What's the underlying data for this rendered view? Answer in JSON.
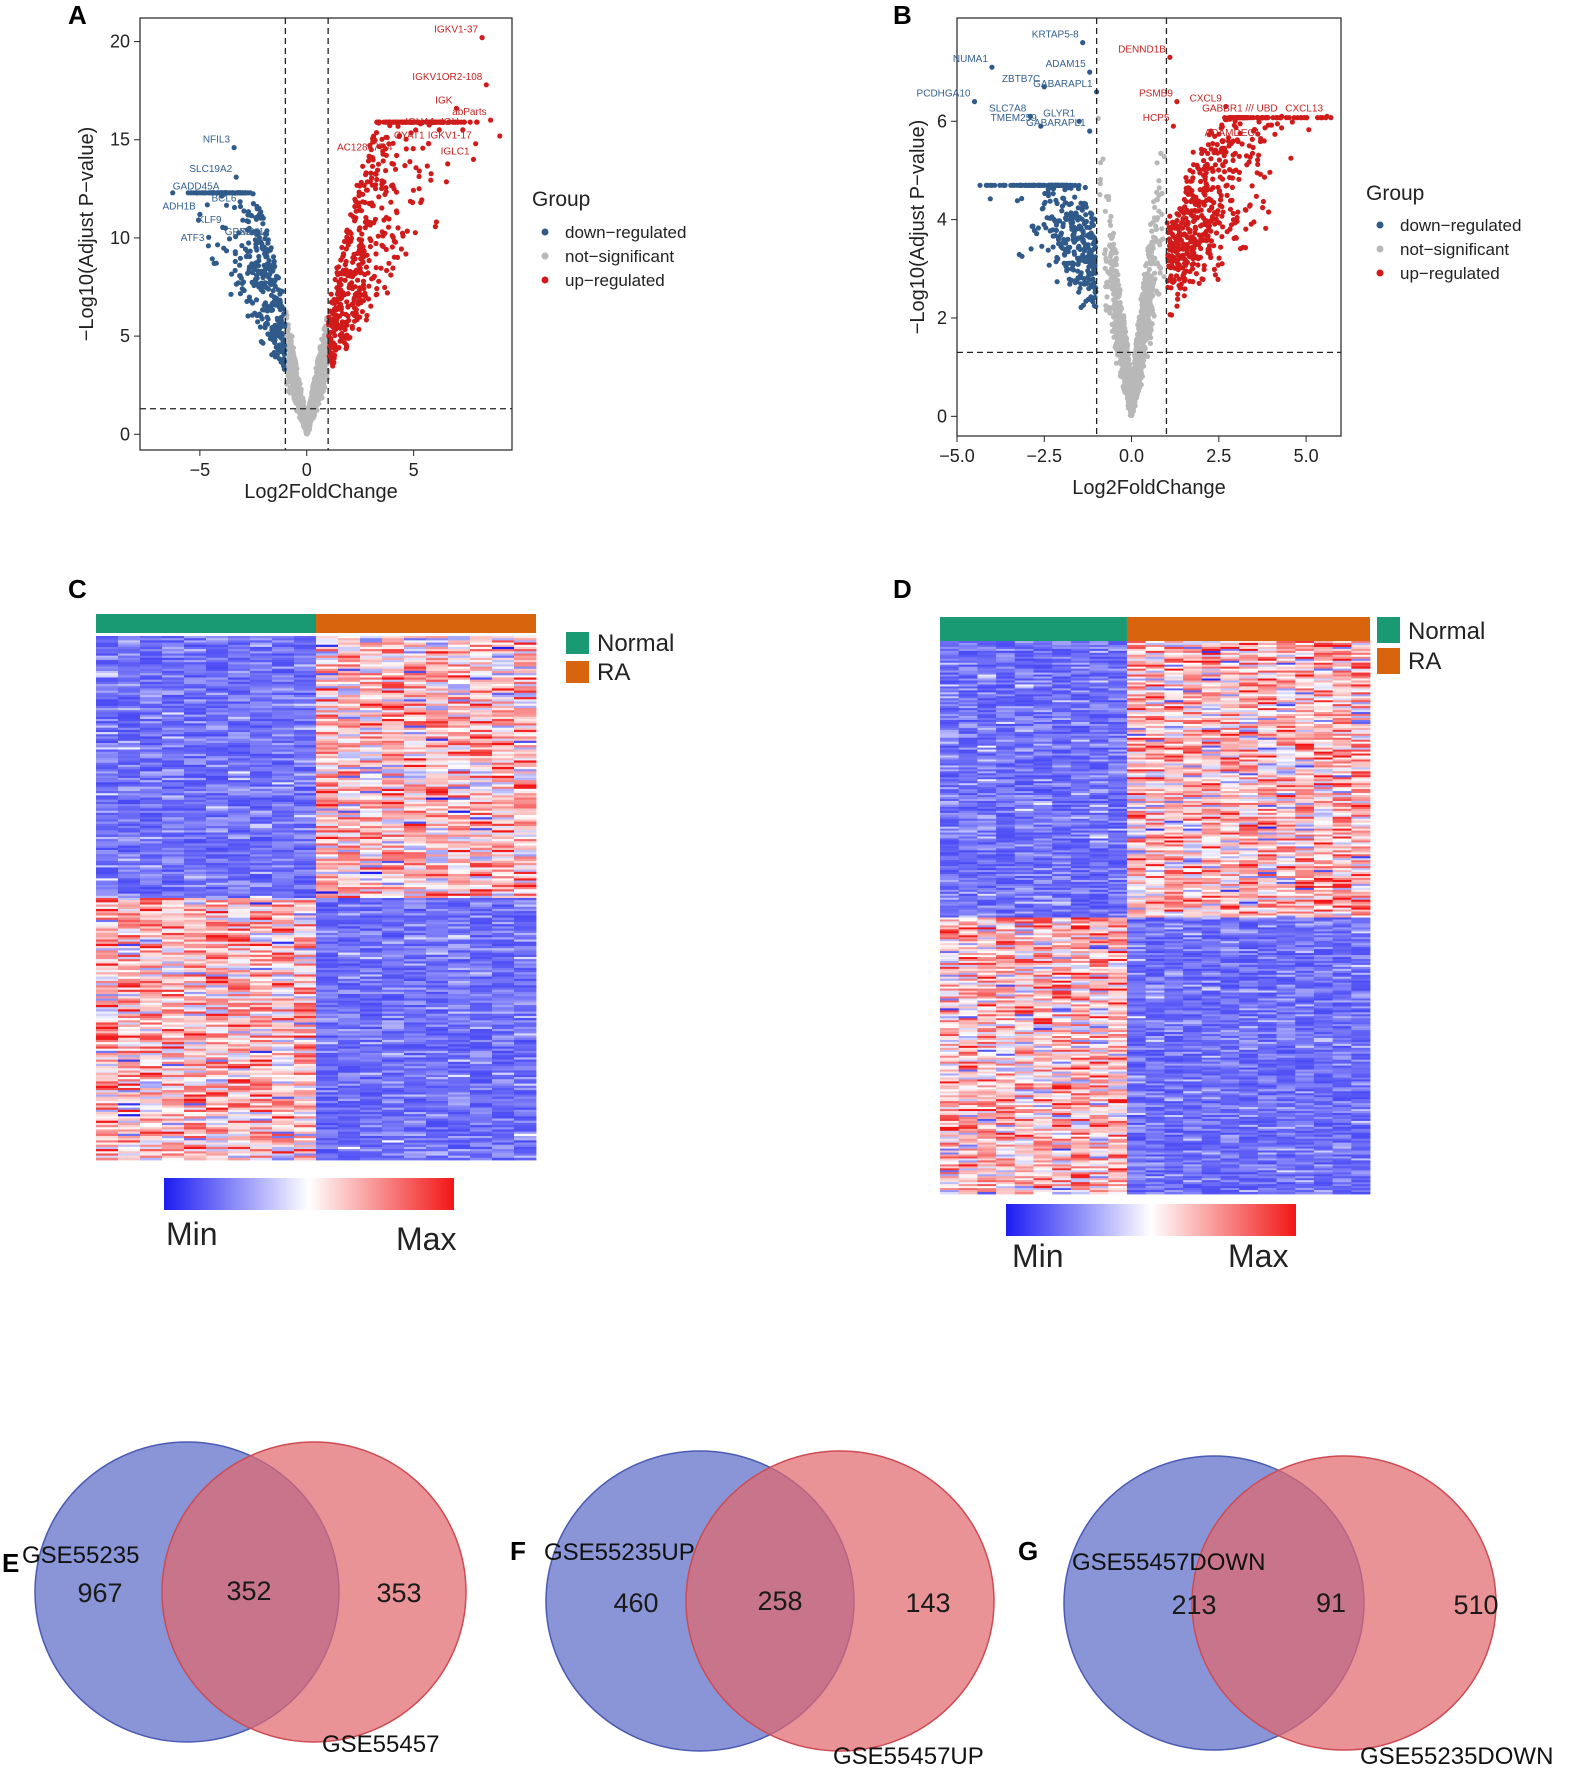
{
  "panels": {
    "A": "A",
    "B": "B",
    "C": "C",
    "D": "D",
    "E": "E",
    "F": "F",
    "G": "G"
  },
  "colors": {
    "down": "#2f5a8a",
    "ns": "#b8b8b8",
    "up": "#d11b1b",
    "normal_bar": "#1a9a73",
    "ra_bar": "#d8640e",
    "venn_left": "#5b6cc6",
    "venn_right": "#e16a6f",
    "heat_min": "#1c1cf2",
    "heat_mid": "#ffffff",
    "heat_max": "#f21616"
  },
  "chart_data": [
    {
      "id": "A",
      "type": "scatter",
      "title": "",
      "xlabel": "Log2FoldChange",
      "ylabel": "−Log10(Adjust P−value)",
      "xlim": [
        -7.8,
        9.6
      ],
      "ylim": [
        -0.8,
        21.2
      ],
      "xticks": [
        -5,
        0,
        5
      ],
      "xtick_labels": [
        "−5",
        "0",
        "5"
      ],
      "yticks": [
        0,
        5,
        10,
        15,
        20
      ],
      "ytick_labels": [
        "0",
        "5",
        "10",
        "15",
        "20"
      ],
      "vlines": [
        -1,
        1
      ],
      "hline": 1.3,
      "legend": {
        "title": "Group",
        "entries": [
          "down−regulated",
          "not−significant",
          "up−regulated"
        ]
      },
      "labeled_genes": [
        {
          "name": "IGKV1-37",
          "x": 8.2,
          "y": 20.2,
          "group": "up"
        },
        {
          "name": "IGKV1OR2-108",
          "x": 8.4,
          "y": 17.8,
          "group": "up"
        },
        {
          "name": "IGK",
          "x": 7.0,
          "y": 16.6,
          "group": "up"
        },
        {
          "name": "abParts",
          "x": 8.6,
          "y": 16.0,
          "group": "up"
        },
        {
          "name": "IGHA1",
          "x": 6.2,
          "y": 15.5,
          "group": "up"
        },
        {
          "name": "IGH",
          "x": 7.3,
          "y": 15.5,
          "group": "up"
        },
        {
          "name": "CYAT1",
          "x": 5.7,
          "y": 14.8,
          "group": "up"
        },
        {
          "name": "IGKV1-17",
          "x": 7.9,
          "y": 14.8,
          "group": "up"
        },
        {
          "name": "AC128677.4",
          "x": 4.2,
          "y": 14.2,
          "group": "up"
        },
        {
          "name": "IGLC1",
          "x": 7.8,
          "y": 14.0,
          "group": "up"
        },
        {
          "name": "NFIL3",
          "x": -3.4,
          "y": 14.6,
          "group": "down"
        },
        {
          "name": "SLC19A2",
          "x": -3.3,
          "y": 13.1,
          "group": "down"
        },
        {
          "name": "GADD45A",
          "x": -3.9,
          "y": 12.2,
          "group": "down"
        },
        {
          "name": "BCL6",
          "x": -3.1,
          "y": 11.6,
          "group": "down"
        },
        {
          "name": "ADH1B",
          "x": -5.0,
          "y": 11.2,
          "group": "down"
        },
        {
          "name": "KLF9",
          "x": -3.8,
          "y": 10.5,
          "group": "down"
        },
        {
          "name": "GPX3",
          "x": -2.4,
          "y": 9.9,
          "group": "down"
        },
        {
          "name": "SAV1",
          "x": -1.8,
          "y": 9.9,
          "group": "down"
        },
        {
          "name": "ATF3",
          "x": -4.6,
          "y": 9.6,
          "group": "down"
        }
      ]
    },
    {
      "id": "B",
      "type": "scatter",
      "title": "",
      "xlabel": "Log2FoldChange",
      "ylabel": "−Log10(Adjust P−value)",
      "xlim": [
        -5.0,
        6.0
      ],
      "ylim": [
        -0.4,
        8.1
      ],
      "xticks": [
        -5.0,
        -2.5,
        0.0,
        2.5,
        5.0
      ],
      "xtick_labels": [
        "−5.0",
        "−2.5",
        "0.0",
        "2.5",
        "5.0"
      ],
      "yticks": [
        0,
        2,
        4,
        6
      ],
      "ytick_labels": [
        "0",
        "2",
        "4",
        "6"
      ],
      "vlines": [
        -1,
        1
      ],
      "hline": 1.3,
      "legend": {
        "title": "Group",
        "entries": [
          "down−regulated",
          "not−significant",
          "up−regulated"
        ]
      },
      "labeled_genes": [
        {
          "name": "KRTAP5-8",
          "x": -1.4,
          "y": 7.6,
          "group": "down"
        },
        {
          "name": "ADAM15",
          "x": -1.2,
          "y": 7.0,
          "group": "down"
        },
        {
          "name": "NUMA1",
          "x": -4.0,
          "y": 7.1,
          "group": "down"
        },
        {
          "name": "ZBTB7C",
          "x": -2.5,
          "y": 6.7,
          "group": "down"
        },
        {
          "name": "GABARAPL1",
          "x": -1.0,
          "y": 6.6,
          "group": "down"
        },
        {
          "name": "PCDHGA10",
          "x": -4.5,
          "y": 6.4,
          "group": "down"
        },
        {
          "name": "SLC7A8",
          "x": -2.9,
          "y": 6.1,
          "group": "down"
        },
        {
          "name": "GLYR1",
          "x": -1.5,
          "y": 6.0,
          "group": "down"
        },
        {
          "name": "TMEM259",
          "x": -2.6,
          "y": 5.9,
          "group": "down"
        },
        {
          "name": "GABARAPL1",
          "x": -1.2,
          "y": 5.8,
          "group": "down"
        },
        {
          "name": "DENND1B",
          "x": 1.1,
          "y": 7.3,
          "group": "up"
        },
        {
          "name": "PSMB9",
          "x": 1.3,
          "y": 6.4,
          "group": "up"
        },
        {
          "name": "HCP5",
          "x": 1.2,
          "y": 5.9,
          "group": "up"
        },
        {
          "name": "CXCL9",
          "x": 2.7,
          "y": 6.3,
          "group": "up"
        },
        {
          "name": "GABBR1 /// UBD",
          "x": 4.3,
          "y": 6.1,
          "group": "up"
        },
        {
          "name": "CXCL13",
          "x": 5.6,
          "y": 6.1,
          "group": "up"
        },
        {
          "name": "ADAMDEC1",
          "x": 3.8,
          "y": 5.6,
          "group": "up"
        }
      ]
    },
    {
      "id": "C",
      "type": "heatmap",
      "legend": {
        "normal": "Normal",
        "ra": "RA"
      },
      "groups": {
        "normal_columns": 10,
        "ra_columns": 10
      },
      "rows_upper_block_up_in_ra": 120,
      "rows_lower_block_down_in_ra": 120,
      "colorbar": {
        "min_label": "Min",
        "max_label": "Max"
      }
    },
    {
      "id": "D",
      "type": "heatmap",
      "legend": {
        "normal": "Normal",
        "ra": "RA"
      },
      "groups": {
        "normal_columns": 10,
        "ra_columns": 13
      },
      "rows_upper_block_up_in_ra": 140,
      "rows_lower_block_down_in_ra": 140,
      "colorbar": {
        "min_label": "Min",
        "max_label": "Max"
      }
    },
    {
      "id": "E",
      "type": "venn",
      "left_label": "GSE55235",
      "right_label": "GSE55457",
      "left_only": 967,
      "overlap": 352,
      "right_only": 353
    },
    {
      "id": "F",
      "type": "venn",
      "left_label": "GSE55235UP",
      "right_label": "GSE55457UP",
      "left_only": 460,
      "overlap": 258,
      "right_only": 143
    },
    {
      "id": "G",
      "type": "venn",
      "left_label": "GSE55457DOWN",
      "right_label": "GSE55235DOWN",
      "left_only": 213,
      "overlap": 91,
      "right_only": 510
    }
  ]
}
